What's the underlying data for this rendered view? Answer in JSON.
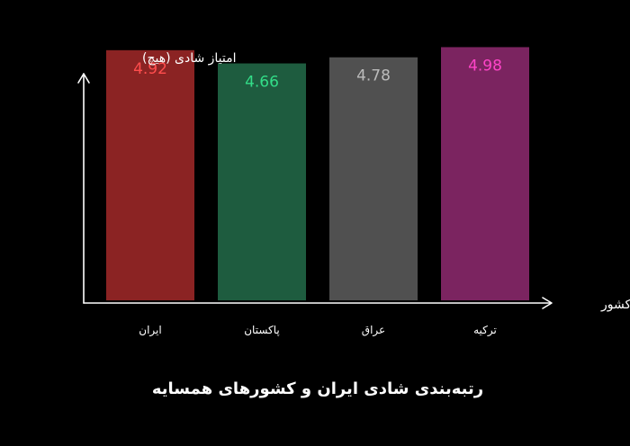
{
  "chart_data": {
    "type": "bar",
    "title": "رتبه‌بندی شادی ایران و کشورهای همسایه",
    "xlabel": "کشور",
    "ylabel": "امتیاز شادی (هیچ)",
    "categories": [
      "ایران",
      "پاکستان",
      "عراق",
      "ترکیه"
    ],
    "values": [
      4.92,
      4.66,
      4.78,
      4.98
    ],
    "value_labels": [
      "4.92",
      "4.66",
      "4.78",
      "4.98"
    ],
    "bar_colors": [
      "#8b2323",
      "#1e5c3f",
      "#505050",
      "#7b2460"
    ],
    "label_colors": [
      "#ff4d4d",
      "#33dd88",
      "#bbbbbb",
      "#ff44c8"
    ],
    "ylim": [
      0,
      5.2
    ],
    "grid": false,
    "legend": false
  }
}
